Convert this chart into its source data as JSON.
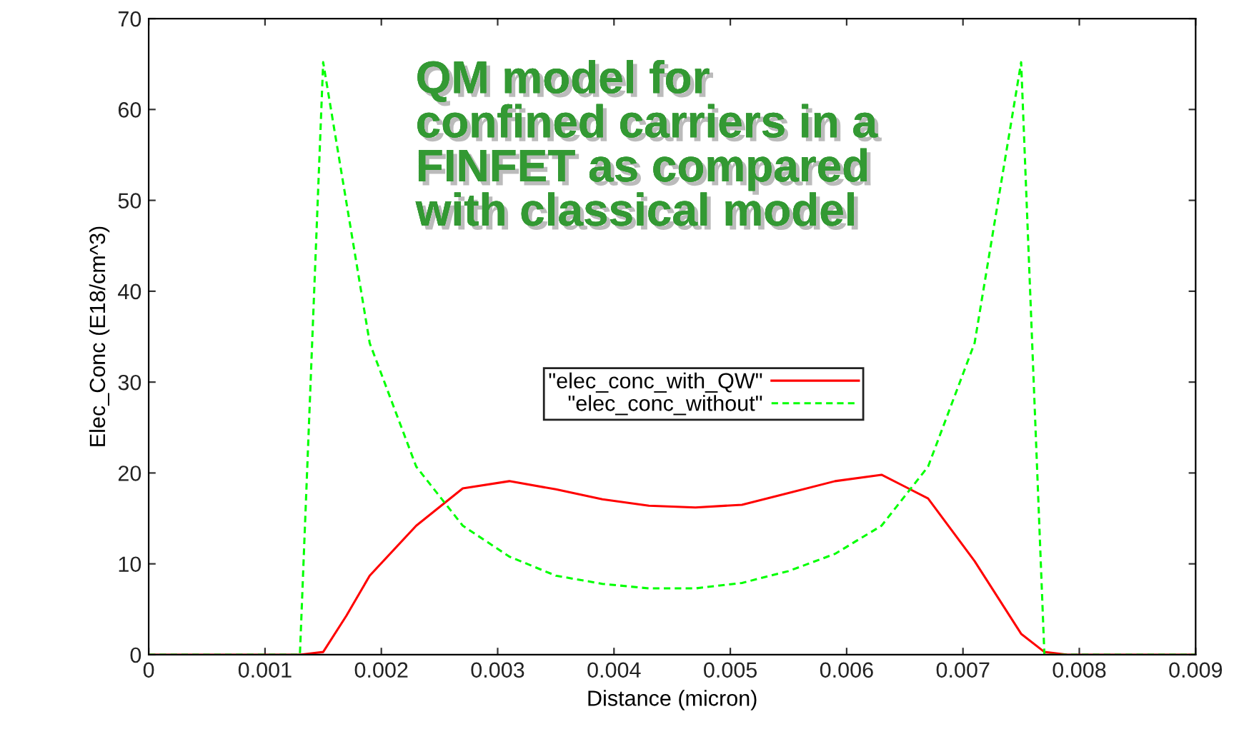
{
  "chart_data": {
    "type": "line",
    "xlabel": "Distance (micron)",
    "ylabel": "Elec_Conc (E18/cm^3)",
    "annotations": [
      "QM model for\nconfined carriers in a\nFINFET as compared\nwith classical model"
    ],
    "xlim": [
      0,
      0.009
    ],
    "xticks": [
      0,
      0.001,
      0.002,
      0.003,
      0.004,
      0.005,
      0.006,
      0.007,
      0.008,
      0.009
    ],
    "ylim": [
      0,
      70
    ],
    "yticks": [
      0,
      10,
      20,
      30,
      40,
      50,
      60,
      70
    ],
    "grid": false,
    "legend": "center",
    "marker": "none",
    "series": [
      {
        "name": "\"elec_conc_with_QW\"",
        "color": "#ff0000",
        "line_style": "solid",
        "x": [
          0,
          0.0013,
          0.0015,
          0.0017,
          0.0019,
          0.0023,
          0.0027,
          0.0031,
          0.0035,
          0.0039,
          0.0043,
          0.0047,
          0.0051,
          0.0055,
          0.0059,
          0.0063,
          0.0067,
          0.0071,
          0.0075,
          0.0077,
          0.0079,
          0.009
        ],
        "values": [
          0,
          0,
          0.3,
          4.3,
          8.7,
          14.2,
          18.3,
          19.1,
          18.2,
          17.1,
          16.4,
          16.2,
          16.5,
          17.8,
          19.1,
          19.8,
          17.2,
          10.3,
          2.3,
          0.3,
          0,
          0
        ]
      },
      {
        "name": "\"elec_conc_without\"",
        "color": "#00ff00",
        "line_style": "dashed",
        "x": [
          0,
          0.0013,
          0.0015,
          0.0019,
          0.0023,
          0.0027,
          0.0031,
          0.0035,
          0.0039,
          0.0043,
          0.0047,
          0.0051,
          0.0055,
          0.0059,
          0.0063,
          0.0067,
          0.0071,
          0.0075,
          0.0077,
          0.009
        ],
        "values": [
          0,
          0,
          65.2,
          34.3,
          20.7,
          14.2,
          10.8,
          8.7,
          7.8,
          7.3,
          7.3,
          7.9,
          9.2,
          11.1,
          14.2,
          20.7,
          34.3,
          65.2,
          0,
          0
        ]
      }
    ]
  }
}
